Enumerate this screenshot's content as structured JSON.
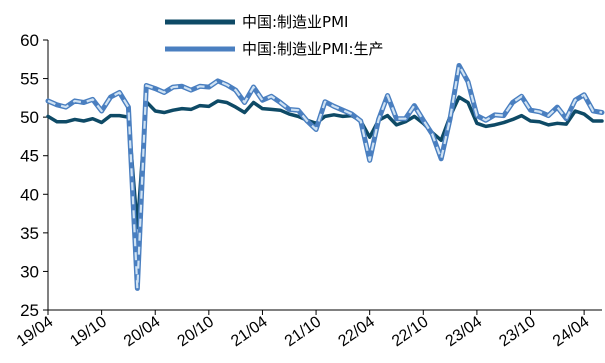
{
  "chart_data": {
    "type": "line",
    "title": "",
    "xlabel": "",
    "ylabel": "",
    "ylim": [
      25,
      60
    ],
    "yticks": [
      25,
      30,
      35,
      40,
      45,
      50,
      55,
      60
    ],
    "x_tick_labels": [
      "19/04",
      "19/10",
      "20/04",
      "20/10",
      "21/04",
      "21/10",
      "22/04",
      "22/10",
      "23/04",
      "23/10",
      "24/04"
    ],
    "x": [
      "19/04",
      "19/05",
      "19/06",
      "19/07",
      "19/08",
      "19/09",
      "19/10",
      "19/11",
      "19/12",
      "20/01",
      "20/02",
      "20/03",
      "20/04",
      "20/05",
      "20/06",
      "20/07",
      "20/08",
      "20/09",
      "20/10",
      "20/11",
      "20/12",
      "21/01",
      "21/02",
      "21/03",
      "21/04",
      "21/05",
      "21/06",
      "21/07",
      "21/08",
      "21/09",
      "21/10",
      "21/11",
      "21/12",
      "22/01",
      "22/02",
      "22/03",
      "22/04",
      "22/05",
      "22/06",
      "22/07",
      "22/08",
      "22/09",
      "22/10",
      "22/11",
      "22/12",
      "23/01",
      "23/02",
      "23/03",
      "23/04",
      "23/05",
      "23/06",
      "23/07",
      "23/08",
      "23/09",
      "23/10",
      "23/11",
      "23/12",
      "24/01",
      "24/02",
      "24/03",
      "24/04",
      "24/05",
      "24/06"
    ],
    "legend_position": "top-center",
    "grid": false,
    "series": [
      {
        "name": "中国:制造业PMI",
        "color": "#0e4a66",
        "values": [
          50.1,
          49.4,
          49.4,
          49.7,
          49.5,
          49.8,
          49.3,
          50.2,
          50.2,
          50.0,
          35.7,
          52.0,
          50.8,
          50.6,
          50.9,
          51.1,
          51.0,
          51.5,
          51.4,
          52.1,
          51.9,
          51.3,
          50.6,
          51.9,
          51.1,
          51.0,
          50.9,
          50.4,
          50.1,
          49.6,
          49.2,
          50.1,
          50.3,
          50.1,
          50.2,
          49.5,
          47.4,
          49.6,
          50.2,
          49.0,
          49.4,
          50.1,
          49.2,
          48.0,
          47.0,
          50.1,
          52.6,
          51.9,
          49.2,
          48.8,
          49.0,
          49.3,
          49.7,
          50.2,
          49.5,
          49.4,
          49.0,
          49.2,
          49.1,
          50.8,
          50.4,
          49.5,
          49.5
        ]
      },
      {
        "name": "中国:制造业PMI:生产",
        "color": "#4a7fc0",
        "values": [
          52.1,
          51.6,
          51.3,
          52.1,
          51.9,
          52.3,
          50.8,
          52.6,
          53.2,
          51.3,
          27.8,
          54.1,
          53.7,
          53.2,
          53.9,
          54.0,
          53.5,
          54.0,
          53.9,
          54.7,
          54.2,
          53.5,
          51.9,
          53.9,
          52.2,
          52.7,
          51.9,
          51.0,
          50.9,
          49.5,
          48.4,
          52.0,
          51.4,
          50.9,
          50.4,
          49.5,
          44.4,
          49.7,
          52.8,
          49.8,
          49.8,
          51.5,
          49.6,
          47.8,
          44.6,
          49.8,
          56.7,
          54.6,
          50.2,
          49.6,
          50.3,
          50.2,
          51.9,
          52.7,
          50.9,
          50.7,
          50.2,
          51.3,
          49.8,
          52.2,
          52.9,
          50.8,
          50.6
        ]
      }
    ]
  },
  "legend": {
    "items": [
      "中国:制造业PMI",
      "中国:制造业PMI:生产"
    ]
  }
}
